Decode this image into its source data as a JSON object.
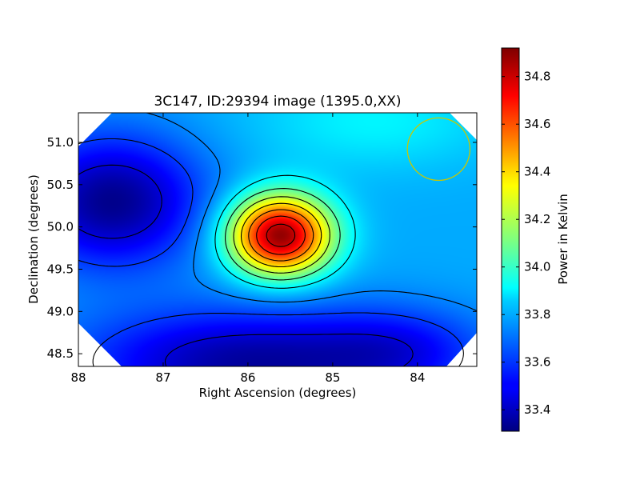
{
  "chart_data": {
    "type": "heatmap",
    "title": "3C147, ID:29394 image (1395.0,XX)",
    "xlabel": "Right Ascension (degrees)",
    "ylabel": "Declination (degrees)",
    "xlim": [
      88.0,
      83.3
    ],
    "ylim": [
      48.35,
      51.35
    ],
    "x_inverted": true,
    "x_ticks": [
      88,
      87,
      86,
      85,
      84
    ],
    "x_tick_labels": [
      "88",
      "87",
      "86",
      "85",
      "84"
    ],
    "y_ticks": [
      48.5,
      49.0,
      49.5,
      50.0,
      50.5,
      51.0
    ],
    "y_tick_labels": [
      "48.5",
      "49.0",
      "49.5",
      "50.0",
      "50.5",
      "51.0"
    ],
    "colormap": "jet",
    "colorbar": {
      "label": "Power in Kelvin",
      "range": [
        33.31,
        34.92
      ],
      "ticks": [
        33.4,
        33.6,
        33.8,
        34.0,
        34.2,
        34.4,
        34.6,
        34.8
      ],
      "tick_labels": [
        "33.4",
        "33.6",
        "33.8",
        "34.0",
        "34.2",
        "34.4",
        "34.6",
        "34.8"
      ]
    },
    "background_level": 33.78,
    "features": [
      {
        "kind": "peak",
        "ra": 85.62,
        "dec": 49.9,
        "amplitude": 1.12,
        "sigma_ra": 0.42,
        "sigma_dec": 0.33
      },
      {
        "kind": "low",
        "ra": 87.6,
        "dec": 50.3,
        "amplitude": -0.45,
        "sigma_ra": 0.75,
        "sigma_dec": 0.55
      },
      {
        "kind": "low",
        "ra": 86.0,
        "dec": 48.4,
        "amplitude": -0.42,
        "sigma_ra": 1.4,
        "sigma_dec": 0.45
      },
      {
        "kind": "low",
        "ra": 84.2,
        "dec": 48.55,
        "amplitude": -0.18,
        "sigma_ra": 0.7,
        "sigma_dec": 0.35
      },
      {
        "kind": "high",
        "ra": 84.5,
        "dec": 51.25,
        "amplitude": 0.12,
        "sigma_ra": 1.0,
        "sigma_dec": 0.4
      }
    ],
    "contour_levels": [
      33.45,
      33.6,
      33.72,
      33.9,
      34.05,
      34.2,
      34.35,
      34.5,
      34.65,
      34.8
    ],
    "beam_circle": {
      "ra": 83.75,
      "dec": 50.92,
      "radius_deg": 0.37,
      "color": "#c8c800"
    }
  }
}
